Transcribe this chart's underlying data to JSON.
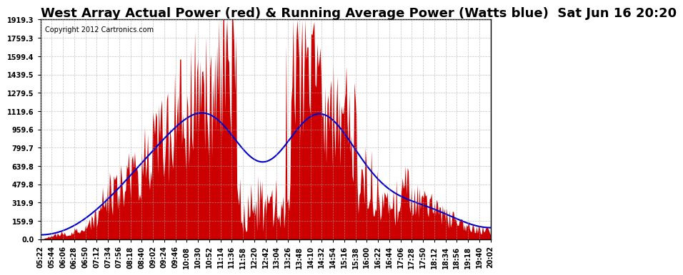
{
  "title": "West Array Actual Power (red) & Running Average Power (Watts blue)  Sat Jun 16 20:20",
  "copyright": "Copyright 2012 Cartronics.com",
  "ymax": 1919.3,
  "ymin": 0.0,
  "yticks": [
    0.0,
    159.9,
    319.9,
    479.8,
    639.8,
    799.7,
    959.6,
    1119.6,
    1279.5,
    1439.5,
    1599.4,
    1759.3,
    1919.3
  ],
  "ytick_labels": [
    "0.0",
    "159.9",
    "319.9",
    "479.8",
    "639.8",
    "799.7",
    "959.6",
    "1119.6",
    "1279.5",
    "1439.5",
    "1599.4",
    "1759.3",
    "1919.3"
  ],
  "actual_color": "#cc0000",
  "avg_color": "#0000cc",
  "background_color": "#ffffff",
  "plot_bg_color": "#ffffff",
  "grid_color": "#aaaaaa",
  "title_fontsize": 13,
  "copyright_fontsize": 7,
  "tick_fontsize": 7
}
